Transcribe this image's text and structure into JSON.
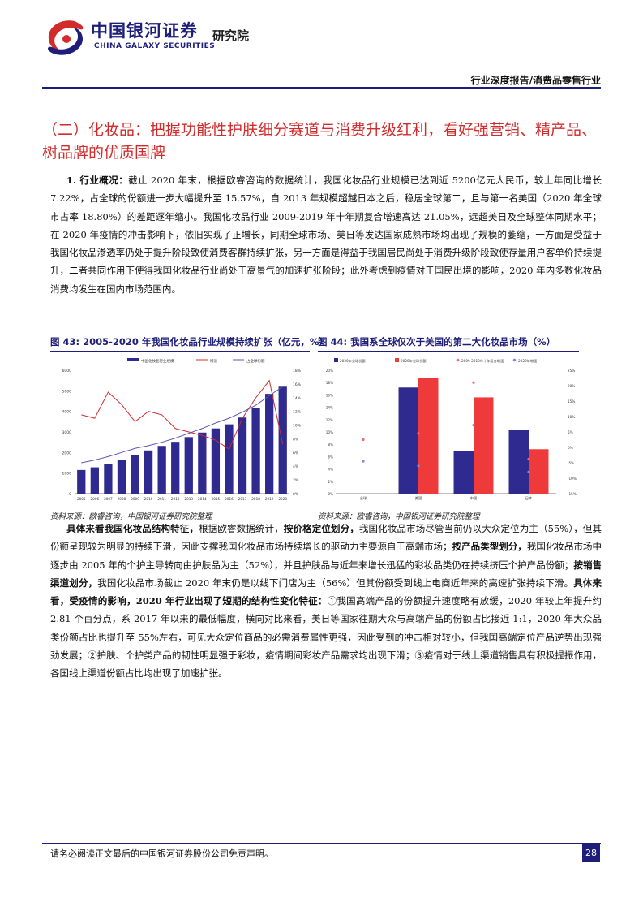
{
  "header": {
    "brand_cn": "中国银河证券",
    "brand_en": "CHINA GALAXY SECURITIES",
    "research": "研究院",
    "report_type": "行业深度报告/消费品零售行业",
    "logo_icon": "galaxy-swirl-logo-icon",
    "colors": {
      "navy": "#1e1e7a",
      "red": "#d22b2b"
    }
  },
  "section_title": "（二）化妆品：把握功能性护肤细分赛道与消费升级红利，看好强营销、精产品、树品牌的优质国牌",
  "para1": {
    "lead": "1. 行业概况：",
    "body": "截止 2020 年末，根据欧睿咨询的数据统计，我国化妆品行业规模已达到近 5200亿元人民币，较上年同比增长 7.22%，占全球的份额进一步大幅提升至 15.57%，自 2013 年规模超越日本之后，稳居全球第二，且与第一名美国（2020 年全球市占率 18.80%）的差距逐年缩小。我国化妆品行业 2009-2019 年十年期复合增速高达 21.05%，远超美日及全球整体同期水平；在 2020 年疫情的冲击影响下，依旧实现了正增长，同期全球市场、美日等发达国家成熟市场均出现了规模的萎缩，一方面是受益于我国化妆品渗透率仍处于提升阶段致使消费客群持续扩张，另一方面是得益于我国居民尚处于消费升级阶段致使存量用户客单价持续提升，二者共同作用下使得我国化妆品行业尚处于高景气的加速扩张阶段；此外考虑到疫情对于国民出境的影响，2020 年内多数化妆品消费均发生在国内市场范围内。"
  },
  "figures": [
    {
      "title": "图 43: 2005-2020 年我国化妆品行业规模持续扩张（亿元，%）",
      "source": "资料来源：欧睿咨询，中国银河证券研究院整理"
    },
    {
      "title": "图 44: 我国系全球仅次于美国的第二大化妆品市场（%）",
      "source": "资料来源：欧睿咨询，中国银河证券研究院整理"
    }
  ],
  "chart_data": [
    {
      "type": "bar",
      "title": "图 43: 2005-2020 年我国化妆品行业规模持续扩张（亿元，%）",
      "legend": [
        "中国化妆品行业规模",
        "增速",
        "占全球份额"
      ],
      "legend_placement": "top",
      "categories": [
        "2005",
        "2006",
        "2007",
        "2008",
        "2009",
        "2010",
        "2011",
        "2012",
        "2013",
        "2014",
        "2015",
        "2016",
        "2017",
        "2018",
        "2019",
        "2020"
      ],
      "series": [
        {
          "name": "中国化妆品行业规模",
          "kind": "bar",
          "axis": "left",
          "color": "#2e2a8f",
          "values": [
            1150,
            1280,
            1450,
            1650,
            1880,
            2100,
            2320,
            2520,
            2750,
            2970,
            3170,
            3370,
            3700,
            4180,
            4850,
            5200
          ]
        },
        {
          "name": "增速",
          "kind": "line",
          "axis": "right",
          "color": "#d22b2b",
          "values": [
            11.5,
            11.0,
            14.8,
            13.0,
            10.5,
            12.0,
            11.5,
            9.5,
            9.0,
            8.5,
            7.8,
            6.5,
            11.0,
            14.0,
            16.5,
            7.2
          ]
        },
        {
          "name": "占全球份额",
          "kind": "line",
          "axis": "right",
          "color": "#5b57b5",
          "values": [
            4.5,
            4.9,
            5.4,
            6.0,
            6.6,
            7.0,
            7.5,
            8.1,
            8.8,
            9.5,
            10.3,
            11.0,
            11.9,
            12.9,
            14.3,
            15.6
          ]
        }
      ],
      "ylim_left": [
        0,
        6000
      ],
      "yticks_left": [
        "0",
        "1000",
        "2000",
        "3000",
        "4000",
        "5000",
        "6000"
      ],
      "ylim_right": [
        0,
        18
      ],
      "yticks_right": [
        "0%",
        "2%",
        "4%",
        "6%",
        "8%",
        "10%",
        "12%",
        "14%",
        "16%",
        "18%"
      ],
      "grid": false
    },
    {
      "type": "bar",
      "title": "图 44: 我国系全球仅次于美国的第二大化妆品市场（%）",
      "legend": [
        "2020年全球份额",
        "2020年全球份额",
        "2009-2019年十年复合增速",
        "2020年增速"
      ],
      "legend_placement": "top",
      "categories": [
        "全球",
        "美国",
        "中国",
        "日本"
      ],
      "series": [
        {
          "name": "2020年全球份额",
          "kind": "bar",
          "axis": "left",
          "color": "#2e2a8f",
          "values": [
            null,
            17.2,
            6.9,
            10.3
          ]
        },
        {
          "name": "2020年全球份额",
          "kind": "bar",
          "axis": "left",
          "color": "#ee3a3a",
          "values": [
            null,
            18.8,
            15.6,
            7.2
          ]
        },
        {
          "name": "2009-2019年十年复合增速",
          "kind": "point",
          "axis": "right",
          "color": "#ee6a6a",
          "values": [
            2.5,
            4.5,
            21.0,
            -3.8
          ]
        },
        {
          "name": "2020年增速",
          "kind": "point",
          "axis": "right",
          "color": "#8a86d0",
          "values": [
            -4.5,
            -6.0,
            7.2,
            -8.0
          ]
        }
      ],
      "ylim_left": [
        0,
        20
      ],
      "yticks_left": [
        "0%",
        "2%",
        "4%",
        "6%",
        "8%",
        "10%",
        "12%",
        "14%",
        "16%",
        "18%",
        "20%"
      ],
      "ylim_right": [
        -15,
        25
      ],
      "yticks_right": [
        "-15%",
        "-10%",
        "-5%",
        "0%",
        "5%",
        "10%",
        "15%",
        "20%",
        "25%"
      ],
      "grid": false
    }
  ],
  "para2": {
    "segments": [
      {
        "text": "具体来看我国化妆品结构特征，",
        "bold": true
      },
      {
        "text": "根据欧睿数据统计，",
        "bold": false
      },
      {
        "text": "按价格定位划分，",
        "bold": true
      },
      {
        "text": "我国化妆品市场尽管当前仍以大众定位为主（55%），但其份额呈现较为明显的持续下滑，因此支撑我国化妆品市场持续增长的驱动力主要源自于高端市场；",
        "bold": false
      },
      {
        "text": "按产品类型划分，",
        "bold": true
      },
      {
        "text": "我国化妆品市场中逐步由 2005 年的个护主导转向由护肤品为主（52%），并且护肤品与近年来增长迅猛的彩妆品类仍在持续挤压个护产品份额；",
        "bold": false
      },
      {
        "text": "按销售渠道划分，",
        "bold": true
      },
      {
        "text": "我国化妆品市场截止 2020 年末仍是以线下门店为主（56%）但其份额受到线上电商近年来的高速扩张持续下滑。",
        "bold": false
      },
      {
        "text": "具体来看，受疫情的影响，2020 年行业出现了短期的结构性变化特征：",
        "bold": true
      },
      {
        "text": "①我国高端产品的份额提升速度略有放缓，2020 年较上年提升约 2.81 个百分点，系 2017 年以来的最低幅度，横向对比来看，美日等国家往期大众与高端产品的份额占比接近 1:1，2020 年大众品类份额占比也提升至 55%左右，可见大众定位商品的必需消费属性更强，因此受到的冲击相对较小，但我国高端定位产品逆势出现强劲发展；②护肤、个护类产品的韧性明显强于彩妆，疫情期间彩妆产品需求均出现下滑；③疫情对于线上渠道销售具有积极提振作用，各国线上渠道份额占比均出现了加速扩张。",
        "bold": false
      }
    ]
  },
  "footer": {
    "note": "请务必阅读正文最后的中国银河证券股份公司免责声明。",
    "page": "28"
  }
}
